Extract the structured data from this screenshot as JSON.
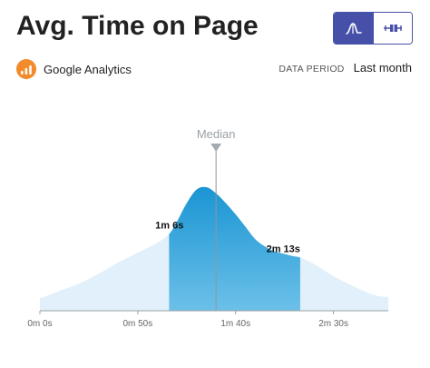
{
  "header": {
    "title": "Avg. Time on Page",
    "source_label": "Google Analytics",
    "source_icon": "google-analytics-icon",
    "period_label": "DATA PERIOD",
    "period_value": "Last month"
  },
  "toggle": {
    "options": [
      {
        "icon": "distribution-curve-icon",
        "active": true
      },
      {
        "icon": "box-plot-icon",
        "active": false
      }
    ]
  },
  "colors": {
    "accent": "#4750a8",
    "curve_light": "#e1f0fa",
    "band_top": "#1a95d3",
    "band_bottom": "#6cc0e8",
    "source_icon": "#f28b2c"
  },
  "chart_data": {
    "type": "area",
    "x_unit": "seconds",
    "xlim": [
      0,
      178
    ],
    "x_ticks": [
      {
        "value": 0,
        "label": "0m 0s"
      },
      {
        "value": 50,
        "label": "0m 50s"
      },
      {
        "value": 100,
        "label": "1m 40s"
      },
      {
        "value": 150,
        "label": "2m 30s"
      }
    ],
    "ylim": [
      0,
      1
    ],
    "curve": {
      "x": [
        0,
        10,
        20,
        30,
        40,
        50,
        60,
        66,
        70,
        75,
        80,
        85,
        90,
        95,
        100,
        105,
        110,
        115,
        120,
        125,
        130,
        133,
        140,
        150,
        160,
        170,
        178
      ],
      "y": [
        0.1,
        0.16,
        0.22,
        0.3,
        0.39,
        0.47,
        0.55,
        0.62,
        0.72,
        0.87,
        0.98,
        1.0,
        0.95,
        0.87,
        0.78,
        0.68,
        0.58,
        0.52,
        0.48,
        0.46,
        0.44,
        0.43,
        0.38,
        0.28,
        0.2,
        0.13,
        0.11
      ]
    },
    "band": {
      "start": 66,
      "end": 133
    },
    "median": {
      "value": 90,
      "label": "Median"
    },
    "band_labels": [
      {
        "x": 66,
        "label": "1m 6s"
      },
      {
        "x": 133,
        "label": "2m 13s"
      }
    ]
  }
}
